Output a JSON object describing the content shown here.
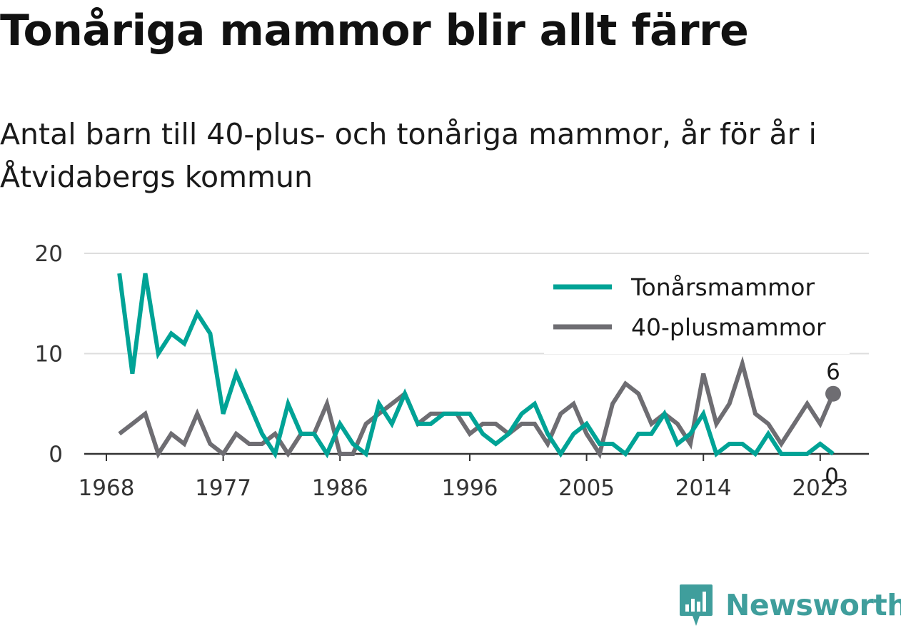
{
  "header": {
    "title": "Tonåriga mammor blir allt färre",
    "subtitle": "Antal barn till 40-plus- och tonåriga mammor, år för år i Åtvidabergs kommun"
  },
  "brand": {
    "name": "Newsworthy",
    "color": "#3f9e9c"
  },
  "chart_data": {
    "type": "line",
    "title": "Tonåriga mammor blir allt färre",
    "subtitle": "Antal barn till 40-plus- och tonåriga mammor, år för år i Åtvidabergs kommun",
    "xlabel": "",
    "ylabel": "",
    "x": [
      1969,
      1970,
      1971,
      1972,
      1973,
      1974,
      1975,
      1976,
      1977,
      1978,
      1979,
      1980,
      1981,
      1982,
      1983,
      1984,
      1985,
      1986,
      1987,
      1988,
      1989,
      1990,
      1991,
      1992,
      1993,
      1994,
      1995,
      1996,
      1997,
      1998,
      1999,
      2000,
      2001,
      2002,
      2003,
      2004,
      2005,
      2006,
      2007,
      2008,
      2009,
      2010,
      2011,
      2012,
      2013,
      2014,
      2015,
      2016,
      2017,
      2018,
      2019,
      2020,
      2021,
      2022,
      2023,
      2024
    ],
    "xticks": [
      "1968",
      "1977",
      "1986",
      "1996",
      "2005",
      "2014",
      "2023"
    ],
    "xtick_values": [
      1968,
      1977,
      1986,
      1996,
      2005,
      2014,
      2023
    ],
    "yticks": [
      "0",
      "10",
      "20"
    ],
    "ytick_values": [
      0,
      10,
      20
    ],
    "ylim": [
      0,
      20
    ],
    "xlim": [
      1968,
      2024
    ],
    "grid": true,
    "legend_position": "top-right",
    "series": [
      {
        "name": "Tonårsmammor",
        "color": "#00a396",
        "values": [
          18,
          8,
          18,
          10,
          12,
          11,
          14,
          12,
          4,
          8,
          5,
          2,
          0,
          5,
          2,
          2,
          0,
          3,
          1,
          0,
          5,
          3,
          6,
          3,
          3,
          4,
          4,
          4,
          2,
          1,
          2,
          4,
          5,
          2,
          0,
          2,
          3,
          1,
          1,
          0,
          2,
          2,
          4,
          1,
          2,
          4,
          0,
          1,
          1,
          0,
          2,
          0,
          0,
          0,
          1,
          0
        ],
        "end_label": "0"
      },
      {
        "name": "40-plusmammor",
        "color": "#6e6d72",
        "values": [
          2,
          3,
          4,
          0,
          2,
          1,
          4,
          1,
          0,
          2,
          1,
          1,
          2,
          0,
          2,
          2,
          5,
          0,
          0,
          3,
          4,
          5,
          6,
          3,
          4,
          4,
          4,
          2,
          3,
          3,
          2,
          3,
          3,
          1,
          4,
          5,
          2,
          0,
          5,
          7,
          6,
          3,
          4,
          3,
          1,
          8,
          3,
          5,
          9,
          4,
          3,
          1,
          3,
          5,
          3,
          6
        ],
        "end_label": "6"
      }
    ]
  }
}
